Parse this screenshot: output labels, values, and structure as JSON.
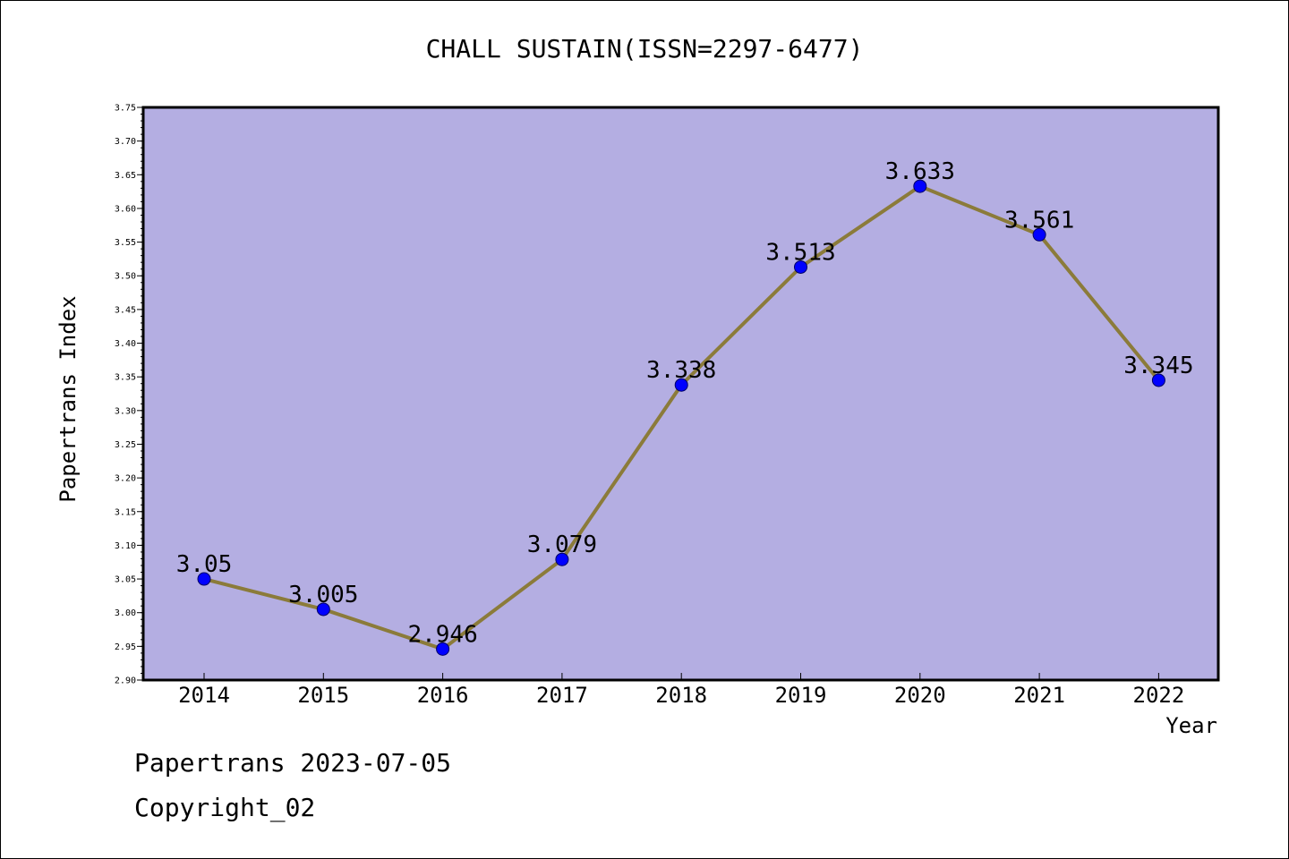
{
  "footer": {
    "line1": "Papertrans 2023-07-05",
    "line2": "Copyright_02"
  },
  "chart_data": {
    "type": "line",
    "title": "CHALL SUSTAIN(ISSN=2297-6477)",
    "xlabel": "Year",
    "ylabel": "Papertrans Index",
    "categories": [
      "2014",
      "2015",
      "2016",
      "2017",
      "2018",
      "2019",
      "2020",
      "2021",
      "2022"
    ],
    "values": [
      3.05,
      3.005,
      2.946,
      3.079,
      3.338,
      3.513,
      3.633,
      3.561,
      3.345
    ],
    "data_labels": [
      "3.05",
      "3.005",
      "2.946",
      "3.079",
      "3.338",
      "3.513",
      "3.633",
      "3.561",
      "3.345"
    ],
    "ylim": [
      2.9,
      3.75
    ],
    "yticks": [
      "2.90",
      "2.95",
      "3.00",
      "3.05",
      "3.10",
      "3.15",
      "3.20",
      "3.25",
      "3.30",
      "3.35",
      "3.40",
      "3.45",
      "3.50",
      "3.55",
      "3.60",
      "3.65",
      "3.70",
      "3.75"
    ],
    "grid": false,
    "colors": {
      "plot_background": "#b4aee2",
      "line": "#8b7b3a",
      "marker": "#0000ff"
    }
  }
}
